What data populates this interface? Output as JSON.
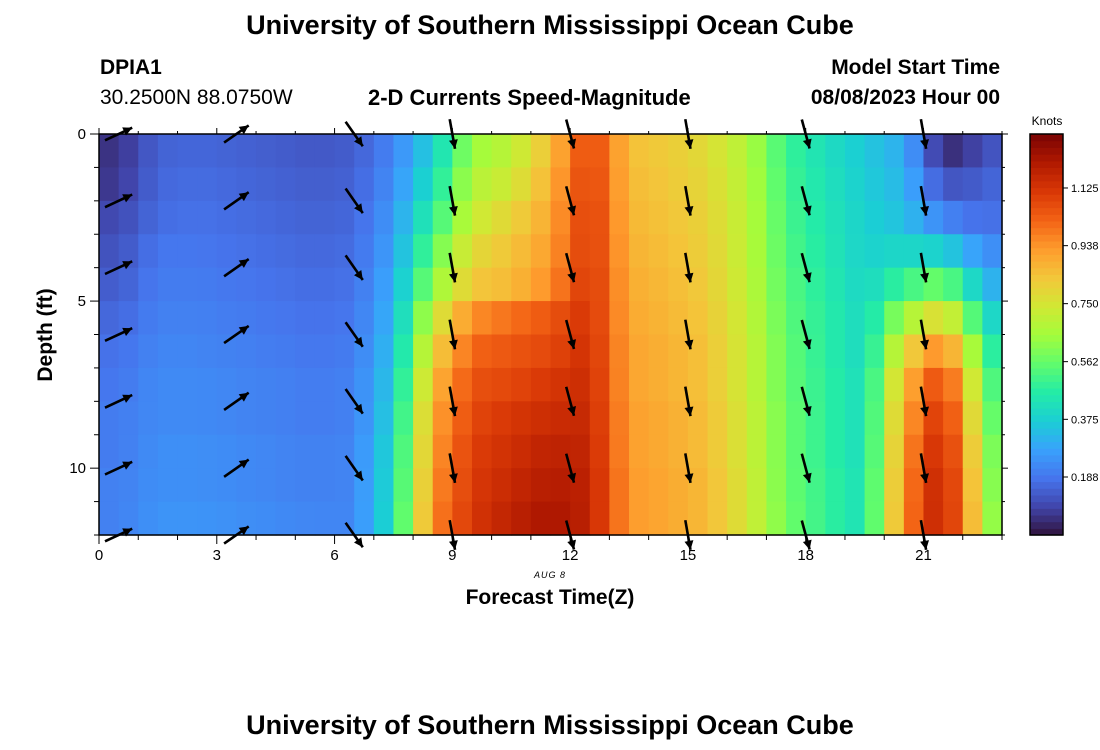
{
  "page": {
    "title_top": "University of Southern Mississippi Ocean Cube",
    "title_bottom": "University of Southern Mississippi Ocean Cube",
    "station_id": "DPIA1",
    "station_coords": "30.2500N  88.0750W",
    "model_start_label": "Model Start Time",
    "model_start_value": "08/08/2023 Hour 00",
    "plot_title": "2-D Currents Speed-Magnitude",
    "date_label": "AUG 8"
  },
  "colors": {
    "background": "#ffffff",
    "text": "#000000",
    "arrow": "#000000",
    "colormap": [
      "#30123b",
      "#4145ab",
      "#4675ed",
      "#39a2fc",
      "#1bcfd4",
      "#24eca6",
      "#61fc6c",
      "#a4fc3b",
      "#d1e834",
      "#f3c63a",
      "#fe9b2d",
      "#f36315",
      "#d93806",
      "#b11901",
      "#7a0403"
    ]
  },
  "chart_data": {
    "type": "heatmap",
    "xlabel": "Forecast Time(Z)",
    "ylabel": "Depth (ft)",
    "xlim": [
      0,
      23
    ],
    "ylim": [
      0,
      12
    ],
    "x_ticks": [
      0,
      3,
      6,
      9,
      12,
      15,
      18,
      21
    ],
    "y_ticks": [
      0,
      5,
      10
    ],
    "colorbar": {
      "label": "Knots",
      "min": 0,
      "max": 1.3,
      "ticks": [
        "0.188",
        "0.375",
        "0.562",
        "0.750",
        "0.938",
        "1.125"
      ]
    },
    "hours": [
      0,
      1,
      2,
      3,
      4,
      5,
      6,
      7,
      8,
      9,
      10,
      11,
      12,
      13,
      14,
      15,
      16,
      17,
      18,
      19,
      20,
      21,
      22,
      23
    ],
    "depth_layer_speeds_knots": [
      [
        0.06,
        0.15,
        0.16,
        0.15,
        0.14,
        0.13,
        0.14,
        0.22,
        0.38,
        0.64,
        0.7,
        0.85,
        1.1,
        0.85,
        0.82,
        0.78,
        0.68,
        0.5,
        0.42,
        0.36,
        0.3,
        0.04,
        0.1,
        0.19
      ],
      [
        0.07,
        0.16,
        0.17,
        0.16,
        0.15,
        0.14,
        0.15,
        0.24,
        0.42,
        0.68,
        0.74,
        0.88,
        1.11,
        0.86,
        0.83,
        0.79,
        0.69,
        0.51,
        0.43,
        0.37,
        0.32,
        0.12,
        0.14,
        0.2
      ],
      [
        0.1,
        0.17,
        0.18,
        0.17,
        0.16,
        0.15,
        0.16,
        0.26,
        0.48,
        0.72,
        0.8,
        0.9,
        1.12,
        0.87,
        0.84,
        0.8,
        0.7,
        0.52,
        0.44,
        0.38,
        0.34,
        0.22,
        0.17,
        0.2
      ],
      [
        0.12,
        0.19,
        0.19,
        0.18,
        0.17,
        0.16,
        0.17,
        0.28,
        0.55,
        0.78,
        0.84,
        0.92,
        1.12,
        0.88,
        0.85,
        0.81,
        0.7,
        0.53,
        0.45,
        0.38,
        0.4,
        0.38,
        0.25,
        0.21
      ],
      [
        0.14,
        0.2,
        0.2,
        0.19,
        0.18,
        0.17,
        0.18,
        0.3,
        0.62,
        0.83,
        0.86,
        0.95,
        1.13,
        0.89,
        0.86,
        0.82,
        0.71,
        0.54,
        0.46,
        0.39,
        0.5,
        0.58,
        0.34,
        0.23
      ],
      [
        0.16,
        0.21,
        0.21,
        0.2,
        0.19,
        0.18,
        0.19,
        0.32,
        0.72,
        0.95,
        1.0,
        1.05,
        1.13,
        0.9,
        0.87,
        0.83,
        0.72,
        0.55,
        0.47,
        0.4,
        0.65,
        0.8,
        0.45,
        0.24
      ],
      [
        0.18,
        0.22,
        0.22,
        0.21,
        0.2,
        0.19,
        0.2,
        0.34,
        0.8,
        1.02,
        1.05,
        1.08,
        1.14,
        0.91,
        0.88,
        0.84,
        0.73,
        0.56,
        0.47,
        0.4,
        0.78,
        0.98,
        0.55,
        0.25
      ],
      [
        0.19,
        0.23,
        0.23,
        0.22,
        0.21,
        0.2,
        0.21,
        0.36,
        0.86,
        1.06,
        1.08,
        1.12,
        1.15,
        0.91,
        0.88,
        0.84,
        0.73,
        0.56,
        0.48,
        0.41,
        0.86,
        1.1,
        0.62,
        0.26
      ],
      [
        0.2,
        0.23,
        0.23,
        0.22,
        0.21,
        0.2,
        0.21,
        0.38,
        0.9,
        1.08,
        1.12,
        1.15,
        1.16,
        0.92,
        0.89,
        0.85,
        0.74,
        0.57,
        0.48,
        0.41,
        0.9,
        1.15,
        0.66,
        0.27
      ],
      [
        0.2,
        0.24,
        0.24,
        0.23,
        0.22,
        0.21,
        0.22,
        0.4,
        0.92,
        1.1,
        1.14,
        1.18,
        1.17,
        0.92,
        0.89,
        0.85,
        0.74,
        0.57,
        0.48,
        0.41,
        0.93,
        1.18,
        0.7,
        0.28
      ],
      [
        0.21,
        0.24,
        0.24,
        0.23,
        0.22,
        0.21,
        0.22,
        0.41,
        0.94,
        1.11,
        1.16,
        1.2,
        1.18,
        0.93,
        0.9,
        0.86,
        0.75,
        0.57,
        0.49,
        0.42,
        0.95,
        1.2,
        0.72,
        0.28
      ],
      [
        0.21,
        0.25,
        0.25,
        0.24,
        0.23,
        0.22,
        0.22,
        0.42,
        0.96,
        1.12,
        1.18,
        1.22,
        1.18,
        0.93,
        0.9,
        0.86,
        0.75,
        0.58,
        0.49,
        0.42,
        0.96,
        1.2,
        0.74,
        0.29
      ]
    ],
    "vectors": {
      "hours": [
        0.5,
        3.5,
        6.5,
        9,
        12,
        15,
        18,
        21
      ],
      "depths_ft": [
        0,
        2,
        4,
        6,
        8,
        10,
        12
      ],
      "direction_deg_from_north": [
        65,
        55,
        145,
        170,
        165,
        170,
        165,
        170
      ]
    }
  }
}
